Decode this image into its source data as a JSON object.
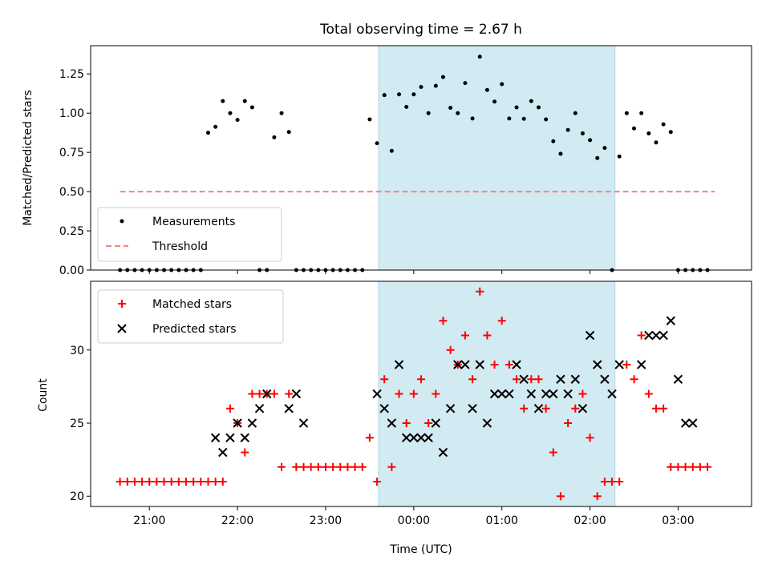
{
  "chart_data": [
    {
      "type": "scatter",
      "title": "Total observing time = 2.67 h",
      "xlabel": "",
      "ylabel": "Matched/Predicted stars",
      "xlim": [
        "20:20",
        "03:50"
      ],
      "ylim": [
        0,
        1.43
      ],
      "yticks": [
        0.0,
        0.25,
        0.5,
        0.75,
        1.0,
        1.25
      ],
      "ytick_labels": [
        "0.00",
        "0.25",
        "0.50",
        "0.75",
        "1.00",
        "1.25"
      ],
      "grid": false,
      "legend": "bottom-left",
      "shaded_interval": {
        "start": "23:36",
        "end": "02:17",
        "color": "#add8e6"
      },
      "series": [
        {
          "name": "Measurements",
          "marker": "dot",
          "color": "#000000",
          "x": [
            "20:40",
            "20:45",
            "20:50",
            "20:55",
            "21:00",
            "21:05",
            "21:10",
            "21:15",
            "21:20",
            "21:25",
            "21:30",
            "21:35",
            "21:40",
            "21:45",
            "21:50",
            "21:55",
            "22:00",
            "22:05",
            "22:10",
            "22:15",
            "22:20",
            "22:25",
            "22:30",
            "22:35",
            "22:40",
            "22:45",
            "22:50",
            "22:55",
            "23:00",
            "23:05",
            "23:10",
            "23:15",
            "23:20",
            "23:25",
            "23:30",
            "23:35",
            "23:40",
            "23:45",
            "23:50",
            "23:55",
            "00:00",
            "00:05",
            "00:10",
            "00:15",
            "00:20",
            "00:25",
            "00:30",
            "00:35",
            "00:40",
            "00:45",
            "00:50",
            "00:55",
            "01:00",
            "01:05",
            "01:10",
            "01:15",
            "01:20",
            "01:25",
            "01:30",
            "01:35",
            "01:40",
            "01:45",
            "01:50",
            "01:55",
            "02:00",
            "02:05",
            "02:10",
            "02:15",
            "02:20",
            "02:25",
            "02:30",
            "02:35",
            "02:40",
            "02:45",
            "02:50",
            "02:55",
            "03:00",
            "03:05",
            "03:10",
            "03:15",
            "03:20"
          ],
          "y": [
            0,
            0,
            0,
            0,
            0,
            0,
            0,
            0,
            0,
            0,
            0,
            0,
            0.875,
            0.913,
            1.077,
            1.0,
            0.957,
            1.077,
            1.037,
            0,
            0,
            0.846,
            1.0,
            0.88,
            0,
            0,
            0,
            0,
            0,
            0,
            0,
            0,
            0,
            0,
            0.96,
            0.808,
            1.115,
            0.76,
            1.12,
            1.04,
            1.12,
            1.167,
            1.0,
            1.174,
            1.23,
            1.034,
            1.0,
            1.192,
            0.966,
            1.36,
            1.148,
            1.074,
            1.185,
            0.966,
            1.037,
            0.964,
            1.077,
            1.037,
            0.96,
            0.821,
            0.741,
            0.893,
            1.0,
            0.871,
            0.828,
            0.714,
            0.778,
            0,
            0.724,
            1.0,
            0.903,
            1.0,
            0.871,
            0.813,
            0.929,
            0.88,
            0,
            0,
            0,
            0,
            0
          ]
        },
        {
          "name": "Threshold",
          "style": "dashed",
          "color": "#ff7f7f",
          "x": [
            "20:40",
            "03:25"
          ],
          "y": [
            0.5,
            0.5
          ]
        }
      ]
    },
    {
      "type": "scatter",
      "title": "",
      "xlabel": "Time (UTC)",
      "ylabel": "Count",
      "xlim": [
        "20:20",
        "03:50"
      ],
      "ylim": [
        19.3,
        34.7
      ],
      "yticks": [
        20,
        25,
        30
      ],
      "ytick_labels": [
        "20",
        "25",
        "30"
      ],
      "xtick_labels": [
        "21:00",
        "22:00",
        "23:00",
        "00:00",
        "01:00",
        "02:00",
        "03:00"
      ],
      "grid": false,
      "legend": "top-left",
      "shaded_interval": {
        "start": "23:36",
        "end": "02:17",
        "color": "#add8e6"
      },
      "series": [
        {
          "name": "Matched stars",
          "marker": "plus",
          "color": "#ff0000",
          "x": [
            "20:40",
            "20:45",
            "20:50",
            "20:55",
            "21:00",
            "21:05",
            "21:10",
            "21:15",
            "21:20",
            "21:25",
            "21:30",
            "21:35",
            "21:40",
            "21:45",
            "21:50",
            "21:55",
            "22:00",
            "22:05",
            "22:10",
            "22:15",
            "22:20",
            "22:25",
            "22:30",
            "22:35",
            "22:40",
            "22:45",
            "22:50",
            "22:55",
            "23:00",
            "23:05",
            "23:10",
            "23:15",
            "23:20",
            "23:25",
            "23:30",
            "23:35",
            "23:40",
            "23:45",
            "23:50",
            "23:55",
            "00:00",
            "00:05",
            "00:10",
            "00:15",
            "00:20",
            "00:25",
            "00:30",
            "00:35",
            "00:40",
            "00:45",
            "00:50",
            "00:55",
            "01:00",
            "01:05",
            "01:10",
            "01:15",
            "01:20",
            "01:25",
            "01:30",
            "01:35",
            "01:40",
            "01:45",
            "01:50",
            "01:55",
            "02:00",
            "02:05",
            "02:10",
            "02:15",
            "02:20",
            "02:25",
            "02:30",
            "02:35",
            "02:40",
            "02:45",
            "02:50",
            "02:55",
            "03:00",
            "03:05",
            "03:10",
            "03:15",
            "03:20"
          ],
          "y": [
            21,
            21,
            21,
            21,
            21,
            21,
            21,
            21,
            21,
            21,
            21,
            21,
            21,
            21,
            21,
            26,
            25,
            23,
            27,
            27,
            27,
            27,
            22,
            27,
            22,
            22,
            22,
            22,
            22,
            22,
            22,
            22,
            22,
            22,
            24,
            21,
            28,
            22,
            27,
            25,
            27,
            28,
            25,
            27,
            32,
            30,
            29,
            31,
            28,
            34,
            31,
            29,
            32,
            29,
            28,
            26,
            28,
            28,
            26,
            23,
            20,
            25,
            26,
            27,
            24,
            20,
            21,
            21,
            21,
            29,
            28,
            31,
            27,
            26,
            26,
            22,
            22,
            22,
            22,
            22,
            22
          ]
        },
        {
          "name": "Predicted stars",
          "marker": "x",
          "color": "#000000",
          "x": [
            "21:45",
            "21:50",
            "21:55",
            "22:00",
            "22:05",
            "22:10",
            "22:15",
            "22:20",
            "22:35",
            "22:40",
            "22:45",
            "23:35",
            "23:40",
            "23:45",
            "23:50",
            "23:55",
            "00:00",
            "00:05",
            "00:10",
            "00:15",
            "00:20",
            "00:25",
            "00:30",
            "00:35",
            "00:40",
            "00:45",
            "00:50",
            "00:55",
            "01:00",
            "01:05",
            "01:10",
            "01:15",
            "01:20",
            "01:25",
            "01:30",
            "01:35",
            "01:40",
            "01:45",
            "01:50",
            "01:55",
            "02:00",
            "02:05",
            "02:10",
            "02:15",
            "02:20",
            "02:35",
            "02:40",
            "02:45",
            "02:50",
            "02:55",
            "03:00",
            "03:05",
            "03:10"
          ],
          "y": [
            24,
            23,
            24,
            25,
            24,
            25,
            26,
            27,
            26,
            27,
            25,
            27,
            26,
            25,
            29,
            24,
            24,
            24,
            24,
            25,
            23,
            26,
            29,
            29,
            26,
            29,
            25,
            27,
            27,
            27,
            29,
            28,
            27,
            26,
            27,
            27,
            28,
            27,
            28,
            26,
            31,
            29,
            28,
            27,
            29,
            29,
            31,
            31,
            31,
            32,
            28,
            25,
            25
          ]
        }
      ]
    }
  ]
}
